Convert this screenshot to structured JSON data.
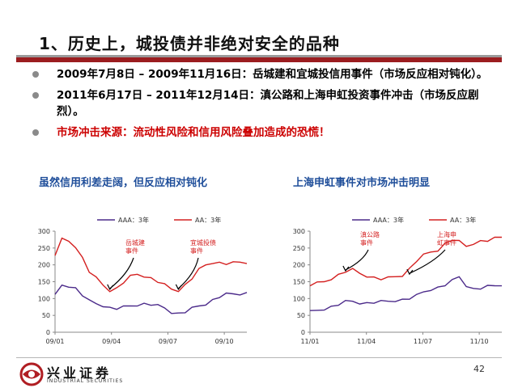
{
  "title": "1、历史上，城投债并非绝对安全的品种",
  "bullets": [
    {
      "text": "2009年7月8日 – 2009年11月16日：岳城建和宜城投信用事件（市场反应相对钝化）。",
      "color": "#000000"
    },
    {
      "text": "2011年6月17日 – 2011年12月14日：滇公路和上海申虹投资事件冲击（市场反应剧烈）。",
      "color": "#000000"
    },
    {
      "text": "市场冲击来源：流动性风险和信用风险叠加造成的恐慌！",
      "color": "#cc0000"
    }
  ],
  "chart_titles": [
    "虽然信用利差走阔，但反应相对钝化",
    "上海申虹事件对市场冲击明显"
  ],
  "chart_data": [
    {
      "type": "line",
      "legend_position": "top",
      "x_ticks": [
        "09/01",
        "09/04",
        "09/07",
        "09/10"
      ],
      "ylim": [
        0,
        300
      ],
      "y_ticks": [
        0,
        50,
        100,
        150,
        200,
        250,
        300
      ],
      "series": [
        {
          "name": "AAA：3年",
          "color": "#4b2a8a",
          "values": [
            108,
            140,
            138,
            130,
            110,
            92,
            85,
            80,
            72,
            70,
            74,
            78,
            82,
            84,
            82,
            78,
            72,
            60,
            55,
            60,
            70,
            78,
            85,
            95,
            105,
            112,
            114,
            115,
            116
          ]
        },
        {
          "name": "AA：3年",
          "color": "#d42020",
          "values": [
            230,
            275,
            270,
            255,
            220,
            180,
            160,
            140,
            125,
            130,
            148,
            165,
            172,
            168,
            160,
            150,
            140,
            128,
            125,
            140,
            160,
            185,
            200,
            208,
            206,
            203,
            205,
            208,
            208
          ]
        }
      ],
      "annotations": [
        {
          "text": "岳城建事件",
          "x_index": 8,
          "y": 125
        },
        {
          "text": "宜城投债事件",
          "x_index": 18,
          "y": 125
        }
      ]
    },
    {
      "type": "line",
      "legend_position": "top",
      "x_ticks": [
        "11/01",
        "11/04",
        "11/07",
        "11/10"
      ],
      "ylim": [
        0,
        300
      ],
      "y_ticks": [
        0,
        50,
        100,
        150,
        200,
        250,
        300
      ],
      "series": [
        {
          "name": "AAA：3年",
          "color": "#4b2a8a",
          "values": [
            60,
            65,
            70,
            75,
            82,
            90,
            92,
            88,
            86,
            88,
            90,
            92,
            95,
            96,
            100,
            108,
            120,
            128,
            132,
            140,
            152,
            165,
            140,
            128,
            130,
            135,
            138,
            142
          ]
        },
        {
          "name": "AA：3年",
          "color": "#d42020",
          "values": [
            140,
            145,
            150,
            160,
            170,
            180,
            185,
            175,
            168,
            162,
            158,
            160,
            165,
            170,
            188,
            212,
            228,
            238,
            245,
            262,
            275,
            268,
            255,
            265,
            270,
            272,
            278,
            282
          ]
        }
      ],
      "annotations": [
        {
          "text": "滇公路事件",
          "x_index": 5,
          "y": 180
        },
        {
          "text": "上海申虹事件",
          "x_index": 14,
          "y": 170
        }
      ]
    }
  ],
  "footer": {
    "brand_cn": "兴业证券",
    "brand_en": "INDUSTRIAL SECURITIES",
    "page": "42",
    "logo_color": "#b01e23"
  }
}
